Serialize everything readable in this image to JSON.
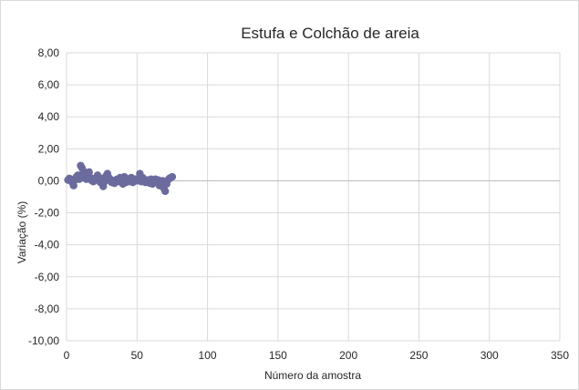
{
  "chart_data": {
    "type": "scatter",
    "title": "Estufa e Colchão de areia",
    "xlabel": "Número da amostra",
    "ylabel": "Variação (%)",
    "xlim": [
      0,
      350
    ],
    "ylim": [
      -10,
      8
    ],
    "x_ticks": [
      "0",
      "50",
      "100",
      "150",
      "200",
      "250",
      "300",
      "350"
    ],
    "y_ticks": [
      "8,00",
      "6,00",
      "4,00",
      "2,00",
      "0,00",
      "-2,00",
      "-4,00",
      "-6,00",
      "-8,00",
      "-10,00"
    ],
    "grid": true,
    "legend": "none",
    "marker_color": "#6b6b9e",
    "series": [
      {
        "x": [
          1,
          2,
          3,
          4,
          5,
          6,
          7,
          8,
          9,
          10,
          11,
          12,
          13,
          14,
          15,
          16,
          17,
          18,
          19,
          20,
          21,
          22,
          23,
          24,
          25,
          26,
          27,
          28,
          29,
          30,
          31,
          32,
          33,
          34,
          35,
          36,
          37,
          38,
          39,
          40,
          41,
          42,
          43,
          44,
          45,
          46,
          47,
          48,
          49,
          50,
          51,
          52,
          53,
          54,
          55,
          56,
          57,
          58,
          59,
          60,
          61,
          62,
          63,
          64,
          65,
          66,
          67,
          68,
          69,
          70,
          71,
          72,
          73,
          74,
          75
        ],
        "y": [
          0.05,
          0.15,
          0.1,
          -0.1,
          -0.3,
          0.05,
          0.25,
          0.35,
          0.1,
          0.95,
          0.8,
          0.6,
          0.3,
          0.1,
          0.4,
          0.55,
          0.2,
          0.0,
          -0.05,
          0.1,
          0.2,
          0.35,
          0.05,
          -0.1,
          0.15,
          -0.35,
          -0.05,
          0.3,
          0.45,
          0.2,
          0.1,
          -0.1,
          0.0,
          -0.15,
          0.05,
          0.1,
          -0.05,
          0.2,
          0.15,
          -0.2,
          0.25,
          -0.1,
          0.0,
          -0.05,
          0.15,
          0.2,
          -0.1,
          0.05,
          0.1,
          0.0,
          0.15,
          0.45,
          -0.05,
          0.2,
          0.1,
          -0.1,
          0.0,
          0.05,
          -0.15,
          0.1,
          -0.2,
          -0.05,
          0.1,
          -0.1,
          0.05,
          -0.3,
          -0.1,
          0.0,
          -0.45,
          -0.65,
          -0.2,
          0.05,
          0.15,
          0.2,
          0.25
        ]
      }
    ]
  }
}
